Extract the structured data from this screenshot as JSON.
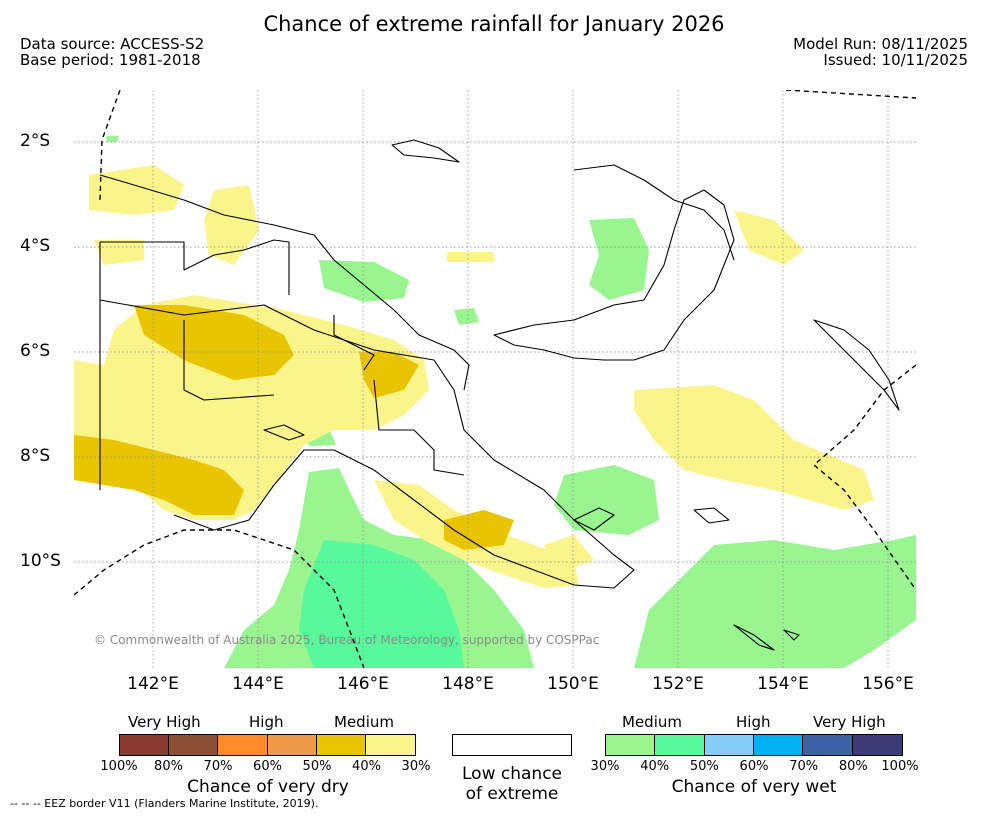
{
  "title": "Chance of extreme rainfall for January 2026",
  "meta": {
    "data_source": "Data source: ACCESS-S2",
    "base_period": "Base period: 1981-2018",
    "model_run": "Model Run: 08/11/2025",
    "issued": "Issued: 10/11/2025"
  },
  "axes": {
    "lat_labels": [
      "2°S",
      "4°S",
      "6°S",
      "8°S",
      "10°S"
    ],
    "lon_labels": [
      "142°E",
      "144°E",
      "146°E",
      "148°E",
      "150°E",
      "152°E",
      "154°E",
      "156°E"
    ]
  },
  "copyright": "© Commonwealth of Australia 2025, Bureau of Meteorology, supported by COSPPac",
  "legend": {
    "dry": {
      "headers": [
        "Very High",
        "High",
        "Medium"
      ],
      "colors": [
        "#8b3a30",
        "#8c4f38",
        "#ff8a2a",
        "#ef9a48",
        "#e9c400",
        "#fbf48a"
      ],
      "ticks": [
        "100%",
        "80%",
        "70%",
        "60%",
        "50%",
        "40%",
        "30%"
      ],
      "caption": "Chance of very dry"
    },
    "low": {
      "caption_line1": "Low chance",
      "caption_line2": "of extreme"
    },
    "wet": {
      "headers": [
        "Medium",
        "High",
        "Very High"
      ],
      "colors": [
        "#98f590",
        "#58f99a",
        "#86ccf8",
        "#00b0f0",
        "#3a62a4",
        "#3e3a78"
      ],
      "ticks": [
        "30%",
        "40%",
        "50%",
        "60%",
        "70%",
        "80%",
        "100%"
      ],
      "caption": "Chance of very wet"
    }
  },
  "eez_note": "-- -- -- EEZ border V11 (Flanders Marine Institute, 2019)."
}
